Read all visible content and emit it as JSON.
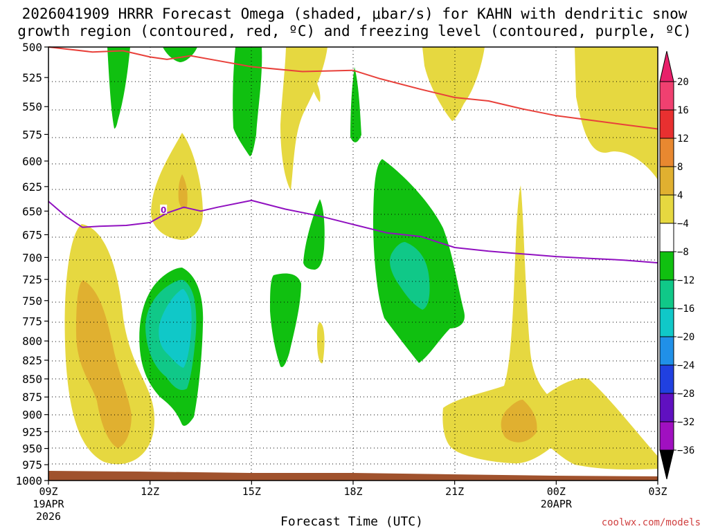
{
  "chart_data": {
    "type": "time-height",
    "title_line1": "2026041909 HRRR Forecast Omega (shaded, μbar/s) for KAHN with dendritic snow",
    "title_line2": "growth region (contoured, red, ºC) and freezing level (contoured, purple, ºC)",
    "xlabel": "Forecast Time (UTC)",
    "credit": "coolwx.com/models",
    "x_range_hours": [
      0,
      18
    ],
    "x_ticks": [
      {
        "hour": 0,
        "label": "09Z",
        "sub1": "19APR",
        "sub2": "2026"
      },
      {
        "hour": 3,
        "label": "12Z"
      },
      {
        "hour": 6,
        "label": "15Z"
      },
      {
        "hour": 9,
        "label": "18Z"
      },
      {
        "hour": 12,
        "label": "21Z"
      },
      {
        "hour": 15,
        "label": "00Z",
        "sub1": "20APR"
      },
      {
        "hour": 18,
        "label": "03Z"
      }
    ],
    "y_range_hpa": [
      500,
      1000
    ],
    "y_ticks": [
      500,
      525,
      550,
      575,
      600,
      625,
      650,
      675,
      700,
      725,
      750,
      775,
      800,
      825,
      850,
      875,
      900,
      925,
      950,
      975,
      1000
    ],
    "colorbar": {
      "labels": [
        "20",
        "16",
        "12",
        "8",
        "4",
        "−4",
        "−8",
        "−12",
        "−16",
        "−20",
        "−24",
        "−28",
        "−32",
        "−36"
      ],
      "colors": [
        "#f04070",
        "#e83030",
        "#e88830",
        "#e0b030",
        "#e6d840",
        "#ffffff",
        "#10c010",
        "#10c888",
        "#10c8c8",
        "#2090e8",
        "#2040e0",
        "#6010c0",
        "#a010c0",
        "#a0a0a0"
      ]
    },
    "series": [
      {
        "name": "dendritic snow growth region boundary",
        "color": "#e8403a",
        "points": [
          [
            0,
            500
          ],
          [
            1.3,
            504
          ],
          [
            2.2,
            503
          ],
          [
            3,
            508
          ],
          [
            3.5,
            510
          ],
          [
            4.2,
            507
          ],
          [
            5,
            511
          ],
          [
            6,
            516
          ],
          [
            7.5,
            520
          ],
          [
            9,
            519
          ],
          [
            9.8,
            526
          ],
          [
            11,
            535
          ],
          [
            12,
            542
          ],
          [
            13,
            545
          ],
          [
            14,
            552
          ],
          [
            15,
            558
          ],
          [
            16,
            562
          ],
          [
            17,
            566
          ],
          [
            18,
            570
          ]
        ]
      },
      {
        "name": "freezing level",
        "color": "#9010c0",
        "label": "0",
        "points": [
          [
            0,
            640
          ],
          [
            0.5,
            655
          ],
          [
            1,
            667
          ],
          [
            1.5,
            666
          ],
          [
            2.3,
            665
          ],
          [
            3,
            662
          ],
          [
            3.5,
            652
          ],
          [
            4,
            646
          ],
          [
            4.5,
            650
          ],
          [
            5,
            646
          ],
          [
            6,
            639
          ],
          [
            7,
            648
          ],
          [
            8,
            655
          ],
          [
            9,
            664
          ],
          [
            10,
            673
          ],
          [
            11,
            677
          ],
          [
            12,
            689
          ],
          [
            13,
            693
          ],
          [
            14,
            696
          ],
          [
            15,
            699
          ],
          [
            16,
            701
          ],
          [
            17,
            703
          ],
          [
            18,
            706
          ]
        ]
      }
    ],
    "shaded_regions": [
      {
        "category": "4 to 8",
        "color": "#e6d840",
        "description": "low-level upward motion 09Z-11Z"
      },
      {
        "category": "8 to 12",
        "color": "#e0b030",
        "description": "core near 800-930 hPa around 10Z"
      },
      {
        "category": "-4 to -8",
        "color": "#10c010",
        "description": "sinking areas near 12-13Z, 16-17Z and 19-20Z"
      },
      {
        "category": "-8 to -12",
        "color": "#10c888",
        "description": "cores near 13Z and 20Z"
      },
      {
        "category": "-12 to -16",
        "color": "#10c8c8",
        "description": "core near 13Z around 760-840 hPa"
      }
    ]
  }
}
